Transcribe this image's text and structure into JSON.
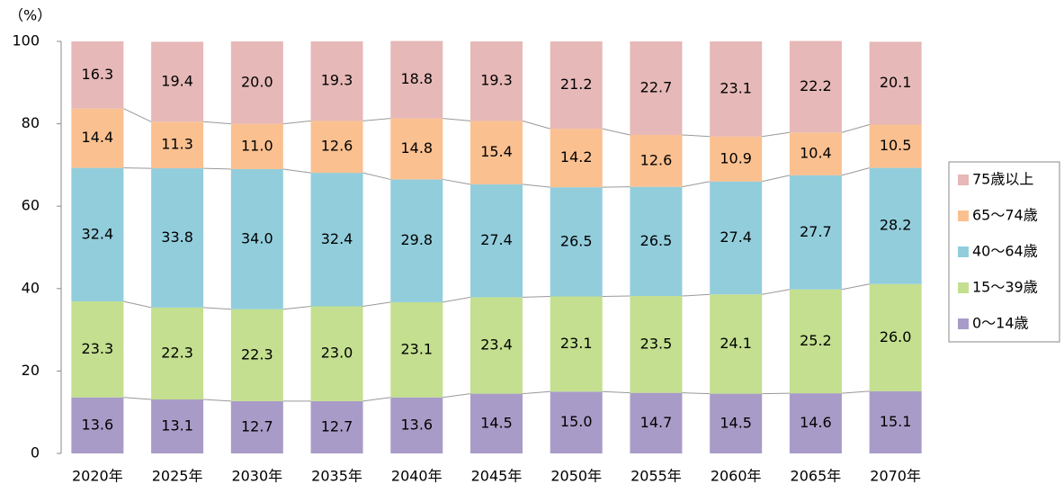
{
  "chart_data": {
    "type": "stacked_bar",
    "y_unit_label": "（%）",
    "categories": [
      "2020年",
      "2025年",
      "2030年",
      "2035年",
      "2040年",
      "2045年",
      "2050年",
      "2055年",
      "2060年",
      "2065年",
      "2070年"
    ],
    "series": [
      {
        "name": "0〜14歳",
        "color": "#a99bc7",
        "values": [
          13.6,
          13.1,
          12.7,
          12.7,
          13.6,
          14.5,
          15.0,
          14.7,
          14.5,
          14.6,
          15.1
        ],
        "value_labels": [
          "13.6",
          "13.1",
          "12.7",
          "12.7",
          "13.6",
          "14.5",
          "15.0",
          "14.7",
          "14.5",
          "14.6",
          "15.1"
        ]
      },
      {
        "name": "15〜39歳",
        "color": "#c3df8f",
        "values": [
          23.3,
          22.3,
          22.3,
          23.0,
          23.1,
          23.4,
          23.1,
          23.5,
          24.1,
          25.2,
          26.0
        ],
        "value_labels": [
          "23.3",
          "22.3",
          "22.3",
          "23.0",
          "23.1",
          "23.4",
          "23.1",
          "23.5",
          "24.1",
          "25.2",
          "26.0"
        ]
      },
      {
        "name": "40〜64歳",
        "color": "#92cddc",
        "values": [
          32.4,
          33.8,
          34.0,
          32.4,
          29.8,
          27.4,
          26.5,
          26.5,
          27.4,
          27.7,
          28.2
        ],
        "value_labels": [
          "32.4",
          "33.8",
          "34.0",
          "32.4",
          "29.8",
          "27.4",
          "26.5",
          "26.5",
          "27.4",
          "27.7",
          "28.2"
        ]
      },
      {
        "name": "65〜74歳",
        "color": "#fac090",
        "values": [
          14.4,
          11.3,
          11.0,
          12.6,
          14.8,
          15.4,
          14.2,
          12.6,
          10.9,
          10.4,
          10.5
        ],
        "value_labels": [
          "14.4",
          "11.3",
          "11.0",
          "12.6",
          "14.8",
          "15.4",
          "14.2",
          "12.6",
          "10.9",
          "10.4",
          "10.5"
        ]
      },
      {
        "name": "75歳以上",
        "color": "#e6b8b7",
        "values": [
          16.3,
          19.4,
          20.0,
          19.3,
          18.8,
          19.3,
          21.2,
          22.7,
          23.1,
          22.2,
          20.1
        ],
        "value_labels": [
          "16.3",
          "19.4",
          "20.0",
          "19.3",
          "18.8",
          "19.3",
          "21.2",
          "22.7",
          "23.1",
          "22.2",
          "20.1"
        ]
      }
    ],
    "ylim": [
      0,
      100
    ],
    "yticks": [
      0,
      20,
      40,
      60,
      80,
      100
    ],
    "grid": false,
    "legend": "right"
  }
}
